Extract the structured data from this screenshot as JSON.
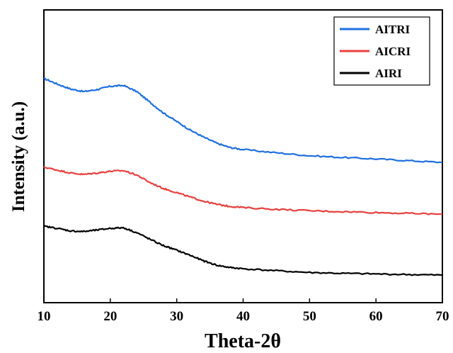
{
  "chart_data": {
    "type": "line",
    "xlabel": "Theta-2θ",
    "ylabel": "Intensity (a.u.)",
    "xlim": [
      10,
      70
    ],
    "ylim": [
      0,
      100
    ],
    "xticks": [
      10,
      20,
      30,
      40,
      50,
      60,
      70
    ],
    "yticks_shown": false,
    "grid": false,
    "legend": {
      "position": "top-right"
    },
    "series": [
      {
        "name": "AITRI",
        "color": "#1f6fe0",
        "x": [
          10,
          12,
          14,
          16,
          18,
          20,
          22,
          24,
          26,
          28,
          30,
          32,
          34,
          36,
          38,
          40,
          45,
          50,
          55,
          60,
          65,
          70
        ],
        "y": [
          76.6,
          74.7,
          73.0,
          72.1,
          72.8,
          73.9,
          74.2,
          72.1,
          68.4,
          64.8,
          61.9,
          59.0,
          56.6,
          54.5,
          53.0,
          52.3,
          51.2,
          50.2,
          49.6,
          49.1,
          48.5,
          47.9
        ]
      },
      {
        "name": "AICRI",
        "color": "#e8403e",
        "x": [
          10,
          12,
          14,
          16,
          18,
          20,
          22,
          24,
          26,
          28,
          30,
          32,
          34,
          36,
          38,
          40,
          45,
          50,
          55,
          60,
          65,
          70
        ],
        "y": [
          46.3,
          45.3,
          44.3,
          43.8,
          44.3,
          44.9,
          45.1,
          43.6,
          41.0,
          39.0,
          37.6,
          36.1,
          34.7,
          33.6,
          32.9,
          32.5,
          31.9,
          31.4,
          31.1,
          30.8,
          30.5,
          30.2
        ]
      },
      {
        "name": "AIRI",
        "color": "#000000",
        "x": [
          10,
          12,
          14,
          16,
          18,
          20,
          22,
          24,
          26,
          28,
          30,
          32,
          34,
          36,
          38,
          40,
          45,
          50,
          55,
          60,
          65,
          70
        ],
        "y": [
          26.1,
          25.4,
          24.5,
          24.3,
          24.8,
          25.4,
          25.6,
          23.9,
          21.6,
          19.5,
          17.9,
          16.2,
          14.3,
          12.8,
          12.0,
          11.6,
          10.9,
          10.3,
          10.0,
          9.8,
          9.6,
          9.4
        ]
      }
    ]
  }
}
